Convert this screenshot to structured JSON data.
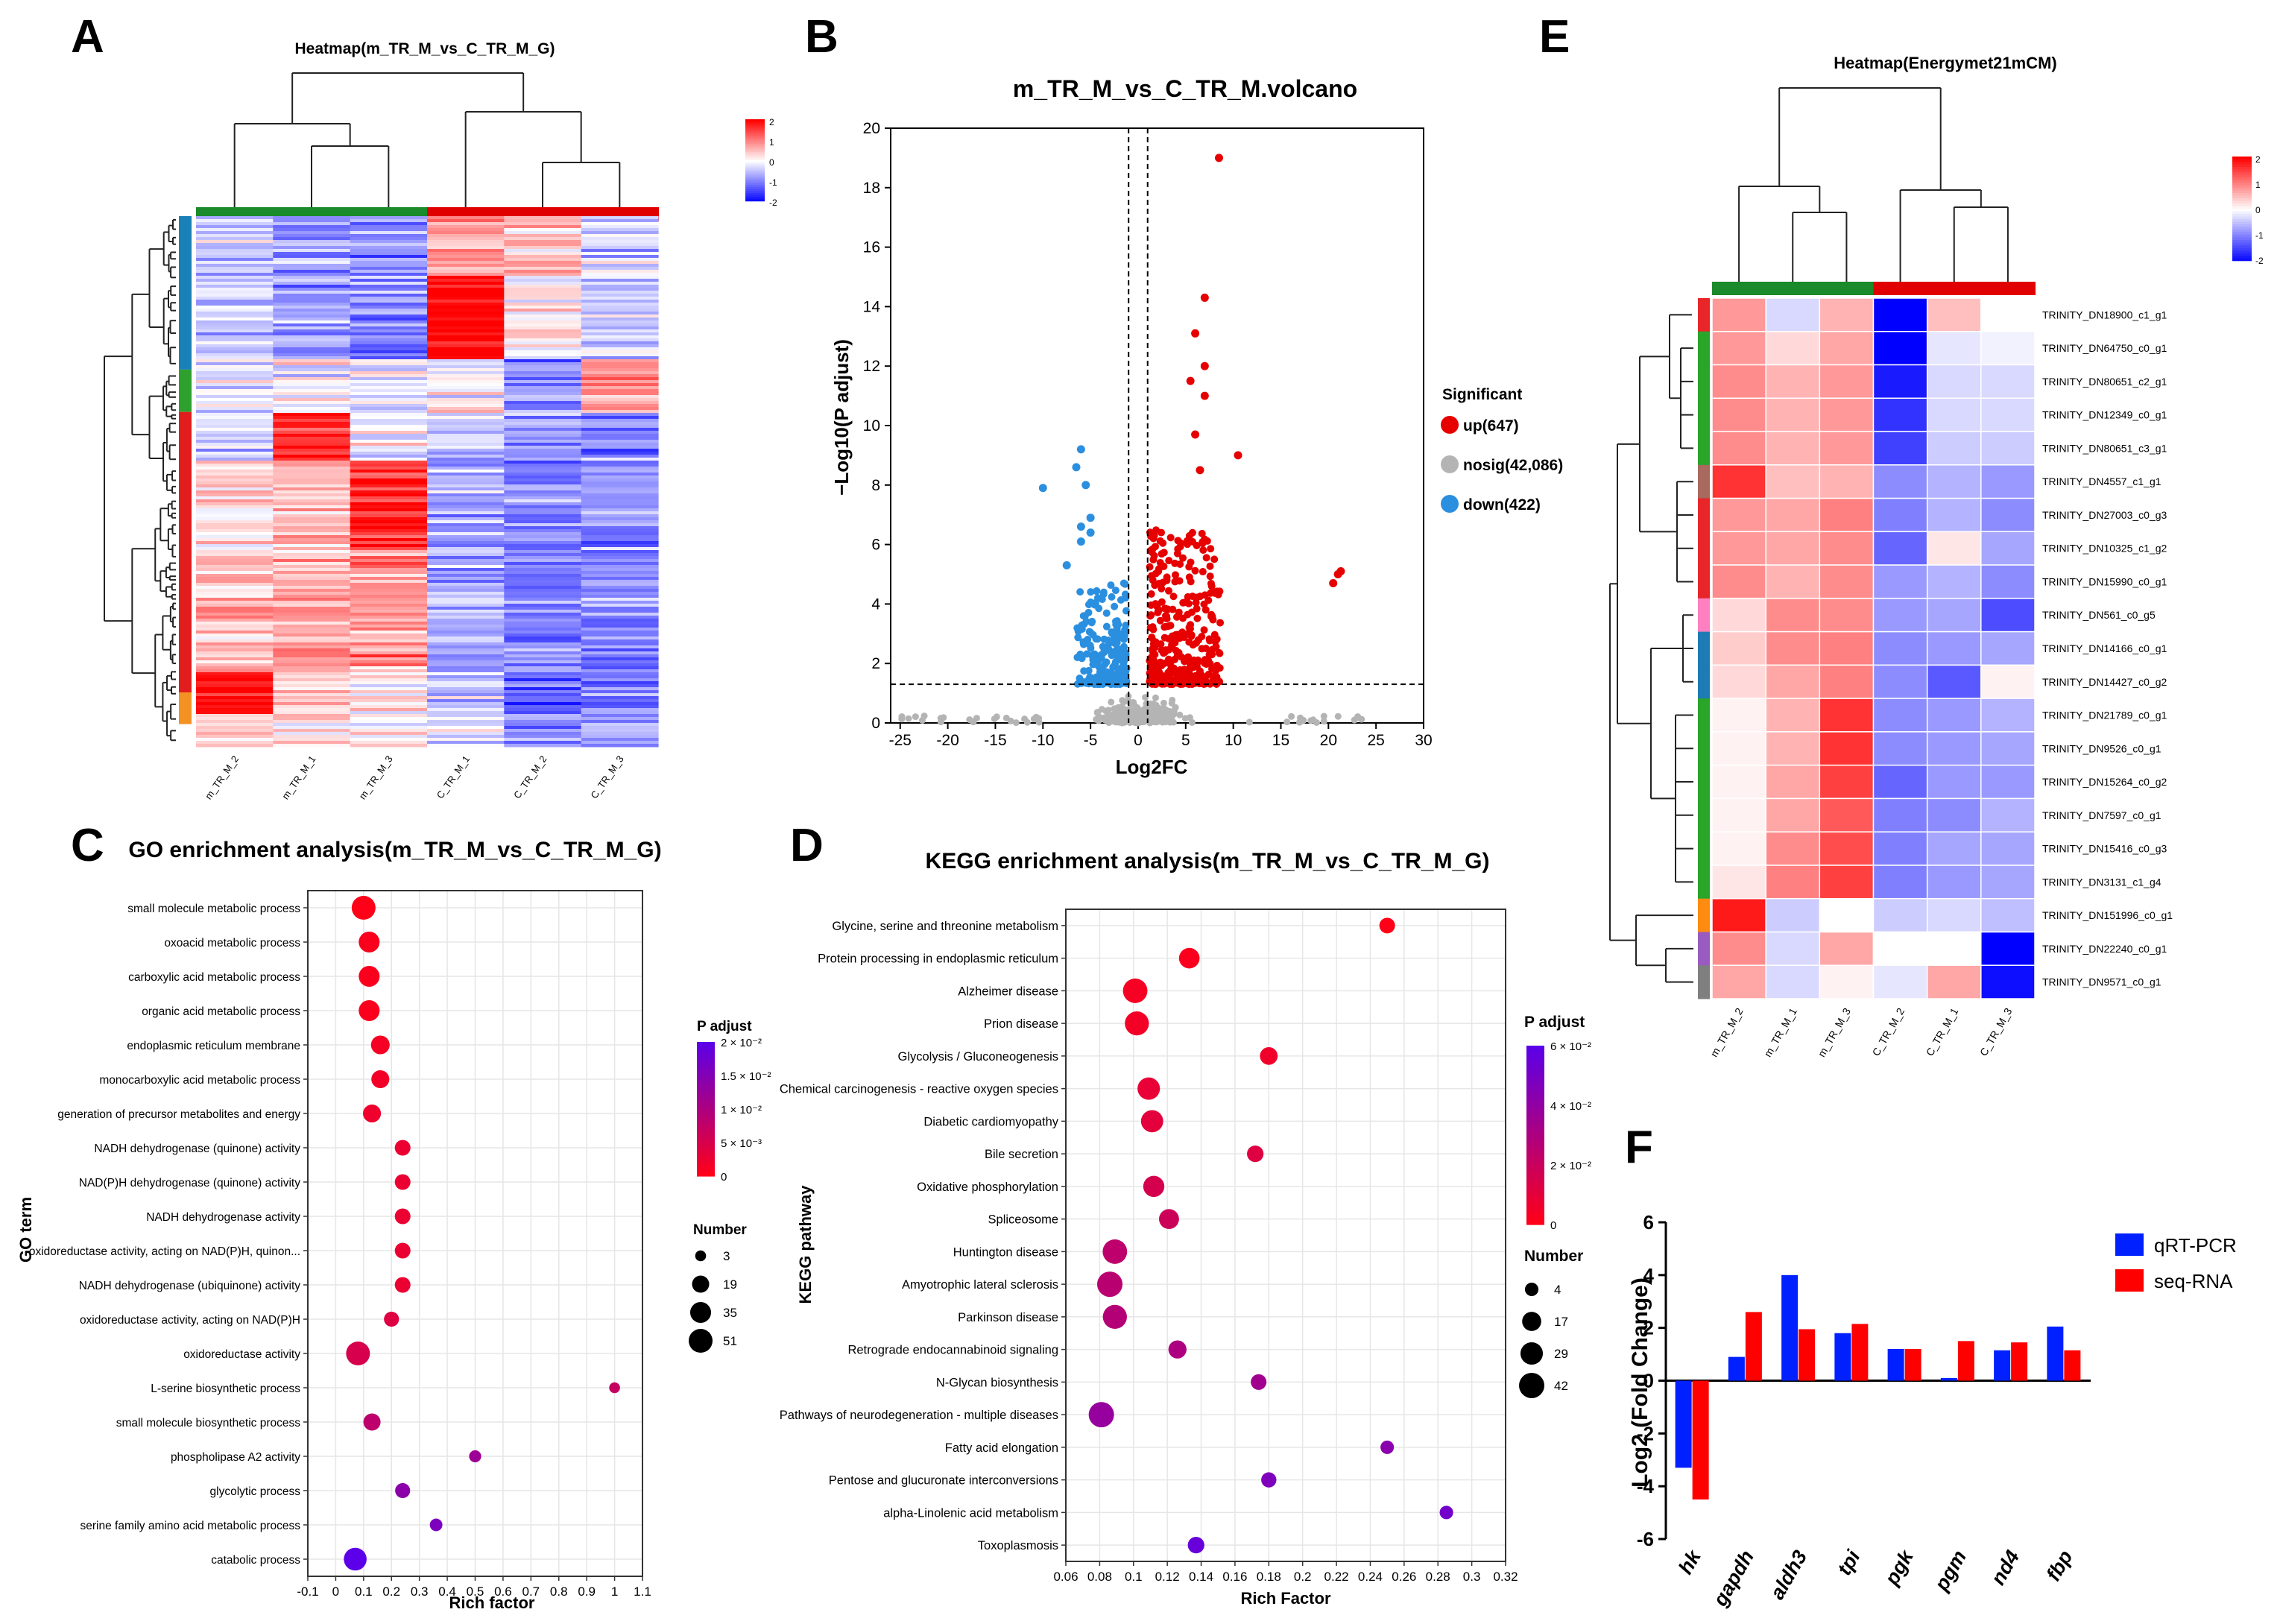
{
  "colors": {
    "hm_high": "#ff0000",
    "hm_mid": "#ffffff",
    "hm_low": "#0000ff",
    "group_m": "#1a8a2a",
    "group_c": "#e00000",
    "up": "#e60000",
    "down": "#2b8fe0",
    "nosig": "#b4b4b4",
    "padj_low": "#ff0018",
    "padj_high": "#5b00e8",
    "qrt": "#0020ff",
    "seq": "#ff0000"
  },
  "panel_labels": {
    "A": "A",
    "B": "B",
    "C": "C",
    "D": "D",
    "E": "E",
    "F": "F"
  },
  "chart_data": [
    {
      "id": "A",
      "type": "heatmap",
      "title": "Heatmap(m_TR_M_vs_C_TR_M_G)",
      "samples": [
        "m_TR_M_2",
        "m_TR_M_1",
        "m_TR_M_3",
        "C_TR_M_1",
        "C_TR_M_2",
        "C_TR_M_3"
      ],
      "colorbar": {
        "ticks": [
          "2",
          "1",
          "0",
          "-1",
          "-2"
        ],
        "range": [
          -2,
          2
        ]
      },
      "row_clusters": [
        {
          "color": "#1a80b8",
          "fraction": 0.29
        },
        {
          "color": "#2ea02e",
          "fraction": 0.08
        },
        {
          "color": "#e21d1d",
          "fraction": 0.53
        },
        {
          "color": "#f39222",
          "fraction": 0.06
        }
      ],
      "blocks": [
        {
          "rows": [
            0,
            0.11
          ],
          "values": [
            -0.5,
            -0.9,
            -1.0,
            0.7,
            0.6,
            -0.3
          ]
        },
        {
          "rows": [
            0.11,
            0.27
          ],
          "values": [
            -0.5,
            -0.7,
            -0.8,
            2.0,
            0.1,
            -0.4
          ]
        },
        {
          "rows": [
            0.27,
            0.37
          ],
          "values": [
            -0.2,
            -0.1,
            -0.3,
            0.1,
            -0.8,
            0.8
          ]
        },
        {
          "rows": [
            0.37,
            0.46
          ],
          "values": [
            -0.3,
            1.6,
            -0.1,
            -0.4,
            -0.8,
            -1.0
          ]
        },
        {
          "rows": [
            0.46,
            0.63
          ],
          "values": [
            0.2,
            0.5,
            1.6,
            -0.7,
            -1.0,
            -0.9
          ]
        },
        {
          "rows": [
            0.63,
            0.86
          ],
          "values": [
            0.6,
            0.6,
            0.8,
            -0.6,
            -1.0,
            -1.0
          ]
        },
        {
          "rows": [
            0.86,
            0.94
          ],
          "values": [
            1.9,
            0.3,
            0.1,
            -0.4,
            -1.1,
            -1.0
          ]
        },
        {
          "rows": [
            0.94,
            1.0
          ],
          "values": [
            0.3,
            0.2,
            0.2,
            -0.2,
            -0.8,
            -0.6
          ]
        }
      ]
    },
    {
      "id": "B",
      "type": "scatter",
      "title": "m_TR_M_vs_C_TR_M.volcano",
      "xlabel": "Log2FC",
      "ylabel": "−Log10(P adjust)",
      "xlim": [
        -26,
        30
      ],
      "ylim": [
        0,
        20
      ],
      "xticks": [
        -25,
        -20,
        -15,
        -10,
        -5,
        0,
        5,
        10,
        15,
        20,
        25,
        30
      ],
      "yticks": [
        0,
        2,
        4,
        6,
        8,
        10,
        12,
        14,
        16,
        18,
        20
      ],
      "threshold_x": [
        -1,
        1
      ],
      "threshold_y": 1.3,
      "legend": {
        "title": "Significant",
        "items": [
          {
            "key": "up",
            "label": "up(647)"
          },
          {
            "key": "nosig",
            "label": "nosig(42,086)"
          },
          {
            "key": "down",
            "label": "down(422)"
          }
        ]
      },
      "highlight_up": [
        [
          8.5,
          19
        ],
        [
          7,
          14.3
        ],
        [
          6,
          13.1
        ],
        [
          7,
          12
        ],
        [
          5.5,
          11.5
        ],
        [
          7,
          11
        ],
        [
          6,
          9.7
        ],
        [
          10.5,
          9
        ],
        [
          6.5,
          8.5
        ],
        [
          21,
          5
        ],
        [
          20.5,
          4.7
        ],
        [
          21.3,
          5.1
        ]
      ],
      "highlight_down": [
        [
          -6,
          9.2
        ],
        [
          -10,
          7.9
        ],
        [
          -6.5,
          8.6
        ],
        [
          -5.5,
          8
        ],
        [
          -5,
          6.9
        ],
        [
          -6,
          6.6
        ],
        [
          -5,
          6.4
        ],
        [
          -6,
          6.1
        ],
        [
          -7.5,
          5.3
        ]
      ]
    },
    {
      "id": "C",
      "type": "scatter",
      "title": "GO enrichment analysis(m_TR_M_vs_C_TR_M_G)",
      "xlabel": "Rich factor",
      "ylabel": "GO term",
      "xlim": [
        -0.1,
        1.1
      ],
      "xticks": [
        "-0.1",
        "0",
        "0.1",
        "0.2",
        "0.3",
        "0.4",
        "0.5",
        "0.6",
        "0.7",
        "0.8",
        "0.9",
        "1",
        "1.1"
      ],
      "padj_max": 0.02,
      "colorbar": {
        "title": "P adjust",
        "ticks": [
          "2 × 10⁻²",
          "1.5 × 10⁻²",
          "1 × 10⁻²",
          "5 × 10⁻³",
          "0"
        ]
      },
      "size_legend": {
        "title": "Number",
        "values": [
          3,
          19,
          35,
          51
        ]
      },
      "terms": [
        {
          "label": "small molecule metabolic process",
          "rich": 0.1,
          "number": 51,
          "padj": 0.0
        },
        {
          "label": "oxoacid metabolic process",
          "rich": 0.12,
          "number": 35,
          "padj": 0.0005
        },
        {
          "label": "carboxylic acid metabolic process",
          "rich": 0.12,
          "number": 35,
          "padj": 0.0005
        },
        {
          "label": "organic acid metabolic process",
          "rich": 0.12,
          "number": 35,
          "padj": 0.0005
        },
        {
          "label": "endoplasmic reticulum membrane",
          "rich": 0.16,
          "number": 25,
          "padj": 0.0012
        },
        {
          "label": "monocarboxylic acid metabolic process",
          "rich": 0.16,
          "number": 22,
          "padj": 0.0015
        },
        {
          "label": "generation of precursor metabolites and energy",
          "rich": 0.13,
          "number": 22,
          "padj": 0.002
        },
        {
          "label": "NADH dehydrogenase (quinone) activity",
          "rich": 0.24,
          "number": 14,
          "padj": 0.0025
        },
        {
          "label": "NAD(P)H dehydrogenase (quinone) activity",
          "rich": 0.24,
          "number": 14,
          "padj": 0.0025
        },
        {
          "label": "NADH dehydrogenase activity",
          "rich": 0.24,
          "number": 14,
          "padj": 0.0025
        },
        {
          "label": "oxidoreductase activity, acting on NAD(P)H, quinon...",
          "rich": 0.24,
          "number": 14,
          "padj": 0.0025
        },
        {
          "label": "NADH dehydrogenase (ubiquinone) activity",
          "rich": 0.24,
          "number": 14,
          "padj": 0.0025
        },
        {
          "label": "oxidoreductase activity, acting on NAD(P)H",
          "rich": 0.2,
          "number": 12,
          "padj": 0.004
        },
        {
          "label": "oxidoreductase activity",
          "rich": 0.08,
          "number": 51,
          "padj": 0.005
        },
        {
          "label": "L-serine biosynthetic process",
          "rich": 1.0,
          "number": 3,
          "padj": 0.007
        },
        {
          "label": "small molecule biosynthetic process",
          "rich": 0.13,
          "number": 19,
          "padj": 0.008
        },
        {
          "label": "phospholipase A2 activity",
          "rich": 0.5,
          "number": 5,
          "padj": 0.012
        },
        {
          "label": "glycolytic process",
          "rich": 0.24,
          "number": 12,
          "padj": 0.014
        },
        {
          "label": "serine family amino acid metabolic process",
          "rich": 0.36,
          "number": 6,
          "padj": 0.016
        },
        {
          "label": "catabolic process",
          "rich": 0.07,
          "number": 45,
          "padj": 0.021
        }
      ]
    },
    {
      "id": "D",
      "type": "scatter",
      "title": "KEGG enrichment analysis(m_TR_M_vs_C_TR_M_G)",
      "xlabel": "Rich Factor",
      "ylabel": "KEGG pathway",
      "xlim": [
        0.06,
        0.32
      ],
      "xticks": [
        "0.06",
        "0.08",
        "0.1",
        "0.12",
        "0.14",
        "0.16",
        "0.18",
        "0.2",
        "0.22",
        "0.24",
        "0.26",
        "0.28",
        "0.3",
        "0.32"
      ],
      "padj_max": 0.07,
      "colorbar": {
        "title": "P adjust",
        "ticks": [
          "6 × 10⁻²",
          "4 × 10⁻²",
          "2 × 10⁻²",
          "0"
        ]
      },
      "size_legend": {
        "title": "Number",
        "values": [
          4,
          17,
          29,
          42
        ]
      },
      "terms": [
        {
          "label": "Glycine, serine and threonine metabolism",
          "rich": 0.25,
          "number": 8,
          "padj": 0.0
        },
        {
          "label": "Protein processing in endoplasmic reticulum",
          "rich": 0.133,
          "number": 22,
          "padj": 0.002
        },
        {
          "label": "Alzheimer disease",
          "rich": 0.101,
          "number": 38,
          "padj": 0.004
        },
        {
          "label": "Prion disease",
          "rich": 0.102,
          "number": 36,
          "padj": 0.005
        },
        {
          "label": "Glycolysis / Gluconeogenesis",
          "rich": 0.18,
          "number": 13,
          "padj": 0.006
        },
        {
          "label": "Chemical carcinogenesis - reactive oxygen species",
          "rich": 0.109,
          "number": 29,
          "padj": 0.01
        },
        {
          "label": "Diabetic cardiomyopathy",
          "rich": 0.111,
          "number": 28,
          "padj": 0.012
        },
        {
          "label": "Bile secretion",
          "rich": 0.172,
          "number": 10,
          "padj": 0.014
        },
        {
          "label": "Oxidative phosphorylation",
          "rich": 0.112,
          "number": 24,
          "padj": 0.018
        },
        {
          "label": "Spliceosome",
          "rich": 0.121,
          "number": 20,
          "padj": 0.022
        },
        {
          "label": "Huntington disease",
          "rich": 0.089,
          "number": 38,
          "padj": 0.028
        },
        {
          "label": "Amyotrophic lateral sclerosis",
          "rich": 0.086,
          "number": 42,
          "padj": 0.03
        },
        {
          "label": "Parkinson disease",
          "rich": 0.089,
          "number": 36,
          "padj": 0.032
        },
        {
          "label": "Retrograde endocannabinoid signaling",
          "rich": 0.126,
          "number": 14,
          "padj": 0.035
        },
        {
          "label": "N-Glycan biosynthesis",
          "rich": 0.174,
          "number": 8,
          "padj": 0.04
        },
        {
          "label": "Pathways of neurodegeneration - multiple diseases",
          "rich": 0.081,
          "number": 42,
          "padj": 0.045
        },
        {
          "label": "Fatty acid elongation",
          "rich": 0.25,
          "number": 4,
          "padj": 0.05
        },
        {
          "label": "Pentose and glucuronate interconversions",
          "rich": 0.18,
          "number": 7,
          "padj": 0.055
        },
        {
          "label": "alpha-Linolenic acid metabolism",
          "rich": 0.285,
          "number": 4,
          "padj": 0.06
        },
        {
          "label": "Toxoplasmosis",
          "rich": 0.137,
          "number": 10,
          "padj": 0.065
        }
      ]
    },
    {
      "id": "E",
      "type": "heatmap",
      "title": "Heatmap(Energymet21mCM)",
      "samples": [
        "m_TR_M_2",
        "m_TR_M_1",
        "m_TR_M_3",
        "C_TR_M_2",
        "C_TR_M_1",
        "C_TR_M_3"
      ],
      "colorbar": {
        "ticks": [
          "2",
          "1",
          "0",
          "-1",
          "-2"
        ],
        "range": [
          -2,
          2
        ]
      },
      "genes": [
        "TRINITY_DN18900_c1_g1",
        "TRINITY_DN64750_c0_g1",
        "TRINITY_DN80651_c2_g1",
        "TRINITY_DN12349_c0_g1",
        "TRINITY_DN80651_c3_g1",
        "TRINITY_DN4557_c1_g1",
        "TRINITY_DN27003_c0_g3",
        "TRINITY_DN10325_c1_g2",
        "TRINITY_DN15990_c0_g1",
        "TRINITY_DN561_c0_g5",
        "TRINITY_DN14166_c0_g1",
        "TRINITY_DN14427_c0_g2",
        "TRINITY_DN21789_c0_g1",
        "TRINITY_DN9526_c0_g1",
        "TRINITY_DN15264_c0_g2",
        "TRINITY_DN7597_c0_g1",
        "TRINITY_DN15416_c0_g3",
        "TRINITY_DN3131_c1_g4",
        "TRINITY_DN151996_c0_g1",
        "TRINITY_DN22240_c0_g1",
        "TRINITY_DN9571_c0_g1"
      ],
      "row_colors": [
        "#e8262a",
        "#2aa52a",
        "#2aa52a",
        "#2aa52a",
        "#2aa52a",
        "#a86a5e",
        "#e8262a",
        "#e8262a",
        "#e8262a",
        "#ff80c0",
        "#1f7bb4",
        "#1f7bb4",
        "#2aa52a",
        "#2aa52a",
        "#2aa52a",
        "#2aa52a",
        "#2aa52a",
        "#2aa52a",
        "#ff8c10",
        "#9a5bc0",
        "#7f7f7f"
      ],
      "values": [
        [
          0.8,
          -0.3,
          0.6,
          -2.0,
          0.5,
          0.0
        ],
        [
          0.8,
          0.3,
          0.7,
          -2.0,
          -0.2,
          -0.1
        ],
        [
          0.9,
          0.6,
          0.8,
          -1.8,
          -0.3,
          -0.3
        ],
        [
          0.9,
          0.6,
          0.8,
          -1.6,
          -0.3,
          -0.3
        ],
        [
          0.9,
          0.6,
          0.8,
          -1.5,
          -0.4,
          -0.4
        ],
        [
          1.6,
          0.5,
          0.6,
          -0.9,
          -0.6,
          -0.8
        ],
        [
          0.8,
          0.7,
          1.0,
          -1.0,
          -0.6,
          -0.9
        ],
        [
          0.8,
          0.7,
          0.9,
          -1.2,
          0.2,
          -0.7
        ],
        [
          0.9,
          0.6,
          0.9,
          -0.8,
          -0.6,
          -0.9
        ],
        [
          0.3,
          0.9,
          0.9,
          -0.8,
          -0.7,
          -1.4
        ],
        [
          0.4,
          0.9,
          1.0,
          -0.9,
          -0.8,
          -0.7
        ],
        [
          0.3,
          0.7,
          1.0,
          -0.9,
          -1.3,
          0.1
        ],
        [
          0.1,
          0.6,
          1.6,
          -0.9,
          -0.8,
          -0.6
        ],
        [
          0.1,
          0.6,
          1.6,
          -0.9,
          -0.8,
          -0.7
        ],
        [
          0.1,
          0.7,
          1.5,
          -1.2,
          -0.8,
          -0.8
        ],
        [
          0.1,
          0.7,
          1.3,
          -1.0,
          -0.9,
          -0.6
        ],
        [
          0.1,
          0.9,
          1.4,
          -1.0,
          -0.7,
          -0.7
        ],
        [
          0.2,
          1.0,
          1.5,
          -1.0,
          -0.8,
          -0.7
        ],
        [
          1.8,
          -0.4,
          0.0,
          -0.4,
          -0.3,
          -0.5
        ],
        [
          0.9,
          -0.3,
          0.7,
          0.0,
          0.0,
          -2.0
        ],
        [
          0.7,
          -0.3,
          0.1,
          -0.2,
          0.7,
          -1.9
        ]
      ]
    },
    {
      "id": "F",
      "type": "bar",
      "title": "",
      "xlabel": "",
      "ylabel": "Log2 (Fold Change)",
      "ylim": [
        -6,
        6
      ],
      "yticks": [
        -6,
        -4,
        -2,
        0,
        2,
        4,
        6
      ],
      "categories": [
        "hk",
        "gapdh",
        "aldh3",
        "tpi",
        "pgk",
        "pgm",
        "nd4",
        "fbp"
      ],
      "series": [
        {
          "name": "qRT-PCR",
          "values": [
            -3.3,
            0.9,
            4.0,
            1.8,
            1.2,
            0.1,
            1.15,
            2.05
          ]
        },
        {
          "name": "seq-RNA",
          "values": [
            -4.5,
            2.6,
            1.95,
            2.15,
            1.2,
            1.5,
            1.45,
            1.15
          ]
        }
      ]
    }
  ]
}
